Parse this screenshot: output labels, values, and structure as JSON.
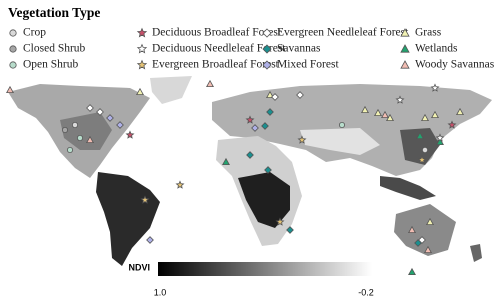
{
  "legend": {
    "title": "Vegetation Type",
    "items": [
      {
        "label": "Crop",
        "shape": "circle",
        "color": "#d9d9d9"
      },
      {
        "label": "Closed Shrub",
        "shape": "circle",
        "color": "#a6a6a6"
      },
      {
        "label": "Open Shrub",
        "shape": "circle",
        "color": "#b7dccb"
      },
      {
        "label": "Deciduous Broadleaf Forest",
        "shape": "star",
        "color": "#c8506a"
      },
      {
        "label": "Deciduous Needleleaf Forest",
        "shape": "star",
        "color": "#ffffff"
      },
      {
        "label": "Evergreen Broadleaf Forest",
        "shape": "star",
        "color": "#e6c476"
      },
      {
        "label": "Evergreen Needleleaf Forest",
        "shape": "diamond",
        "color": "#ffffff"
      },
      {
        "label": "Savannas",
        "shape": "diamond",
        "color": "#1b8f8f"
      },
      {
        "label": "Mixed Forest",
        "shape": "diamond",
        "color": "#aeb0e6"
      },
      {
        "label": "Grass",
        "shape": "triangle",
        "color": "#f2f2b3"
      },
      {
        "label": "Wetlands",
        "shape": "triangle",
        "color": "#22a36f"
      },
      {
        "label": "Woody Savannas",
        "shape": "triangle",
        "color": "#f2bdb3"
      }
    ]
  },
  "colorbar": {
    "label": "NDVI",
    "min_label": "1.0",
    "max_label": "-0.2"
  }
}
